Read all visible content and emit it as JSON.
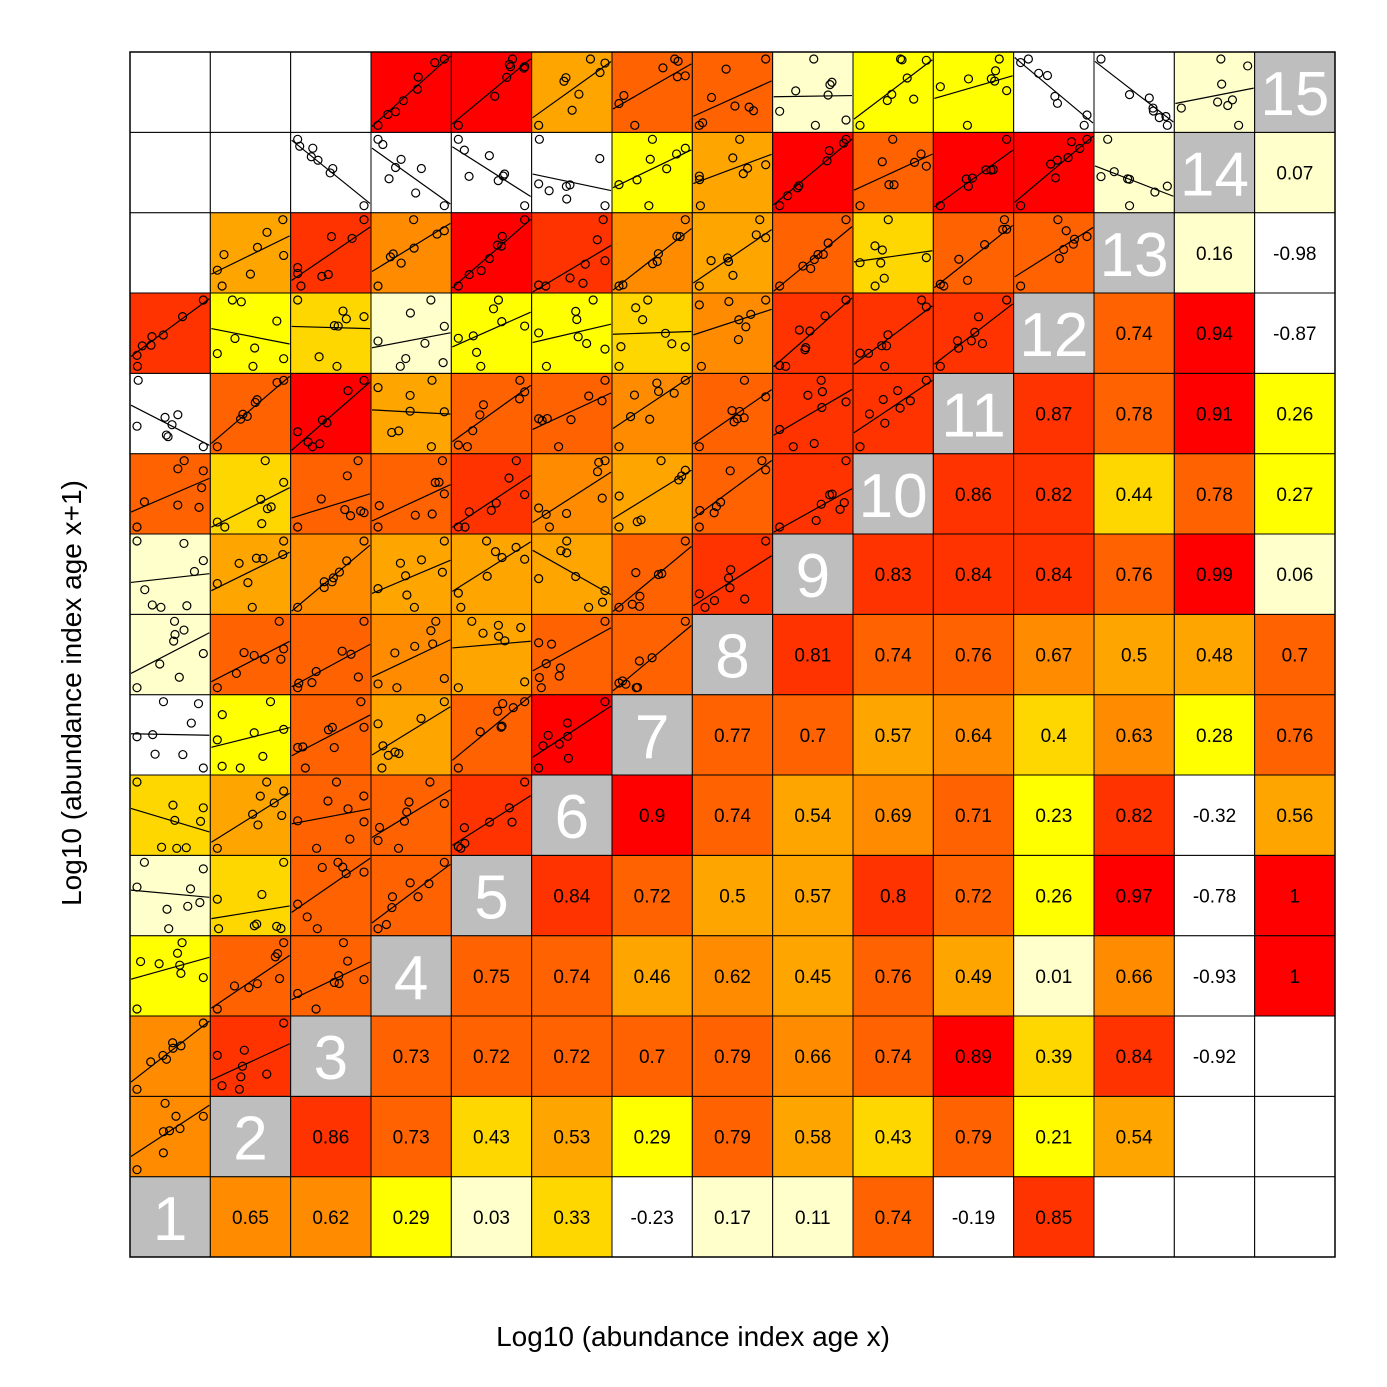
{
  "chart_data": {
    "type": "heatmap",
    "title": "",
    "xlabel": "Log10 (abundance index age x)",
    "ylabel": "Log10 (abundance index age x+1)",
    "ages": [
      "1",
      "2",
      "3",
      "4",
      "5",
      "6",
      "7",
      "8",
      "9",
      "10",
      "11",
      "12",
      "13",
      "14",
      "15"
    ],
    "color_scale": {
      "bins": [
        {
          "min": -1.0,
          "max": 0.0,
          "color": "#ffffff"
        },
        {
          "min": 0.0,
          "max": 0.2,
          "color": "#ffffcc"
        },
        {
          "min": 0.2,
          "max": 0.3,
          "color": "#ffff00"
        },
        {
          "min": 0.3,
          "max": 0.45,
          "color": "#ffd700"
        },
        {
          "min": 0.45,
          "max": 0.6,
          "color": "#ffa500"
        },
        {
          "min": 0.6,
          "max": 0.7,
          "color": "#ff8c00"
        },
        {
          "min": 0.7,
          "max": 0.8,
          "color": "#ff6200"
        },
        {
          "min": 0.8,
          "max": 0.88,
          "color": "#ff3300"
        },
        {
          "min": 0.88,
          "max": 1.01,
          "color": "#ff0000"
        }
      ],
      "diagonal_color": "#bebebe",
      "missing_color": "#ffffff"
    },
    "correlations": [
      [
        null,
        0.65,
        0.62,
        0.29,
        0.03,
        0.33,
        -0.23,
        0.17,
        0.11,
        0.74,
        -0.19,
        0.85,
        null,
        null,
        null
      ],
      [
        null,
        null,
        0.86,
        0.73,
        0.43,
        0.53,
        0.29,
        0.79,
        0.58,
        0.43,
        0.79,
        0.21,
        0.54,
        null,
        null
      ],
      [
        null,
        null,
        null,
        0.73,
        0.72,
        0.72,
        0.7,
        0.79,
        0.66,
        0.74,
        0.89,
        0.39,
        0.84,
        -0.92,
        null
      ],
      [
        null,
        null,
        null,
        null,
        0.75,
        0.74,
        0.46,
        0.62,
        0.45,
        0.76,
        0.49,
        0.01,
        0.66,
        -0.93,
        1
      ],
      [
        null,
        null,
        null,
        null,
        null,
        0.84,
        0.72,
        0.5,
        0.57,
        0.8,
        0.72,
        0.26,
        0.97,
        -0.78,
        1
      ],
      [
        null,
        null,
        null,
        null,
        null,
        null,
        0.9,
        0.74,
        0.54,
        0.69,
        0.71,
        0.23,
        0.82,
        -0.32,
        0.56
      ],
      [
        null,
        null,
        null,
        null,
        null,
        null,
        null,
        0.77,
        0.7,
        0.57,
        0.64,
        0.4,
        0.63,
        0.28,
        0.76
      ],
      [
        null,
        null,
        null,
        null,
        null,
        null,
        null,
        null,
        0.81,
        0.74,
        0.76,
        0.67,
        0.5,
        0.48,
        0.7
      ],
      [
        null,
        null,
        null,
        null,
        null,
        null,
        null,
        null,
        null,
        0.83,
        0.84,
        0.84,
        0.76,
        0.99,
        0.06
      ],
      [
        null,
        null,
        null,
        null,
        null,
        null,
        null,
        null,
        null,
        null,
        0.86,
        0.82,
        0.44,
        0.78,
        0.27
      ],
      [
        null,
        null,
        null,
        null,
        null,
        null,
        null,
        null,
        null,
        null,
        null,
        0.87,
        0.78,
        0.91,
        0.26
      ],
      [
        null,
        null,
        null,
        null,
        null,
        null,
        null,
        null,
        null,
        null,
        null,
        null,
        0.74,
        0.94,
        -0.87
      ],
      [
        null,
        null,
        null,
        null,
        null,
        null,
        null,
        null,
        null,
        null,
        null,
        null,
        null,
        0.16,
        -0.98
      ],
      [
        null,
        null,
        null,
        null,
        null,
        null,
        null,
        null,
        null,
        null,
        null,
        null,
        null,
        null,
        0.07
      ],
      [
        null,
        null,
        null,
        null,
        null,
        null,
        null,
        null,
        null,
        null,
        null,
        null,
        null,
        null,
        null
      ]
    ],
    "labels": [
      [
        null,
        "0.65",
        "0.62",
        "0.29",
        "0.03",
        "0.33",
        "-0.23",
        "0.17",
        "0.11",
        "0.74",
        "-0.19",
        "0.85",
        null,
        null,
        null
      ],
      [
        null,
        null,
        "0.86",
        "0.73",
        "0.43",
        "0.53",
        "0.29",
        "0.79",
        "0.58",
        "0.43",
        "0.79",
        "0.21",
        "0.54",
        null,
        null
      ],
      [
        null,
        null,
        null,
        "0.73",
        "0.72",
        "0.72",
        "0.7",
        "0.79",
        "0.66",
        "0.74",
        "0.89",
        "0.39",
        "0.84",
        "-0.92",
        null
      ],
      [
        null,
        null,
        null,
        null,
        "0.75",
        "0.74",
        "0.46",
        "0.62",
        "0.45",
        "0.76",
        "0.49",
        "0.01",
        "0.66",
        "-0.93",
        "1"
      ],
      [
        null,
        null,
        null,
        null,
        null,
        "0.84",
        "0.72",
        "0.5",
        "0.57",
        "0.8",
        "0.72",
        "0.26",
        "0.97",
        "-0.78",
        "1"
      ],
      [
        null,
        null,
        null,
        null,
        null,
        null,
        "0.9",
        "0.74",
        "0.54",
        "0.69",
        "0.71",
        "0.23",
        "0.82",
        "-0.32",
        "0.56"
      ],
      [
        null,
        null,
        null,
        null,
        null,
        null,
        null,
        "0.77",
        "0.7",
        "0.57",
        "0.64",
        "0.4",
        "0.63",
        "0.28",
        "0.76"
      ],
      [
        null,
        null,
        null,
        null,
        null,
        null,
        null,
        null,
        "0.81",
        "0.74",
        "0.76",
        "0.67",
        "0.5",
        "0.48",
        "0.7"
      ],
      [
        null,
        null,
        null,
        null,
        null,
        null,
        null,
        null,
        null,
        "0.83",
        "0.84",
        "0.84",
        "0.76",
        "0.99",
        "0.06"
      ],
      [
        null,
        null,
        null,
        null,
        null,
        null,
        null,
        null,
        null,
        null,
        "0.86",
        "0.82",
        "0.44",
        "0.78",
        "0.27"
      ],
      [
        null,
        null,
        null,
        null,
        null,
        null,
        null,
        null,
        null,
        null,
        null,
        "0.87",
        "0.78",
        "0.91",
        "0.26"
      ],
      [
        null,
        null,
        null,
        null,
        null,
        null,
        null,
        null,
        null,
        null,
        null,
        null,
        "0.74",
        "0.94",
        "-0.87"
      ],
      [
        null,
        null,
        null,
        null,
        null,
        null,
        null,
        null,
        null,
        null,
        null,
        null,
        null,
        "0.16",
        "-0.98"
      ],
      [
        null,
        null,
        null,
        null,
        null,
        null,
        null,
        null,
        null,
        null,
        null,
        null,
        null,
        null,
        "0.07"
      ],
      [
        null,
        null,
        null,
        null,
        null,
        null,
        null,
        null,
        null,
        null,
        null,
        null,
        null,
        null,
        null
      ]
    ],
    "lower_panels": "scatterplots of age x vs age x+1 with fitted regression line",
    "grid": true,
    "legend": "none"
  }
}
